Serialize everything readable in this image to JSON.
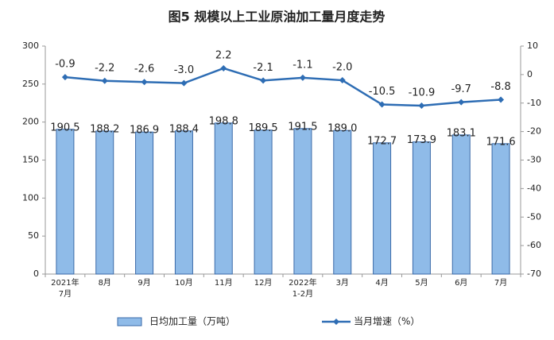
{
  "chart_data": {
    "type": "combo",
    "title": "图5  规模以上工业原油加工量月度走势",
    "categories": [
      "2021年\n7月",
      "8月",
      "9月",
      "10月",
      "11月",
      "12月",
      "2022年\n1-2月",
      "3月",
      "4月",
      "5月",
      "6月",
      "7月"
    ],
    "series": [
      {
        "name": "日均加工量（万吨）",
        "type": "bar",
        "color": "#8fbbe8",
        "values": [
          190.5,
          188.2,
          186.9,
          188.4,
          198.8,
          189.5,
          191.5,
          189.0,
          172.7,
          173.9,
          183.1,
          171.6
        ],
        "value_labels": [
          "190.5",
          "188.2",
          "186.9",
          "188.4",
          "198.8",
          "189.5",
          "191.5",
          "189.0",
          "172.7",
          "173.9",
          "183.1",
          "171.6"
        ]
      },
      {
        "name": "当月增速（%）",
        "type": "line",
        "axis": "y2",
        "color": "#2e6db4",
        "values": [
          -0.9,
          -2.2,
          -2.6,
          -3.0,
          2.2,
          -2.1,
          -1.1,
          -2.0,
          -10.5,
          -10.9,
          -9.7,
          -8.8
        ],
        "value_labels": [
          "-0.9",
          "-2.2",
          "-2.6",
          "-3.0",
          "2.2",
          "-2.1",
          "-1.1",
          "-2.0",
          "-10.5",
          "-10.9",
          "-9.7",
          "-8.8"
        ]
      }
    ],
    "ylim": [
      0,
      300
    ],
    "yticks": [
      0,
      50,
      100,
      150,
      200,
      250,
      300
    ],
    "y2lim": [
      -70,
      10
    ],
    "y2ticks": [
      -70,
      -60,
      -50,
      -40,
      -30,
      -20,
      -10,
      0,
      10
    ],
    "grid": false
  }
}
